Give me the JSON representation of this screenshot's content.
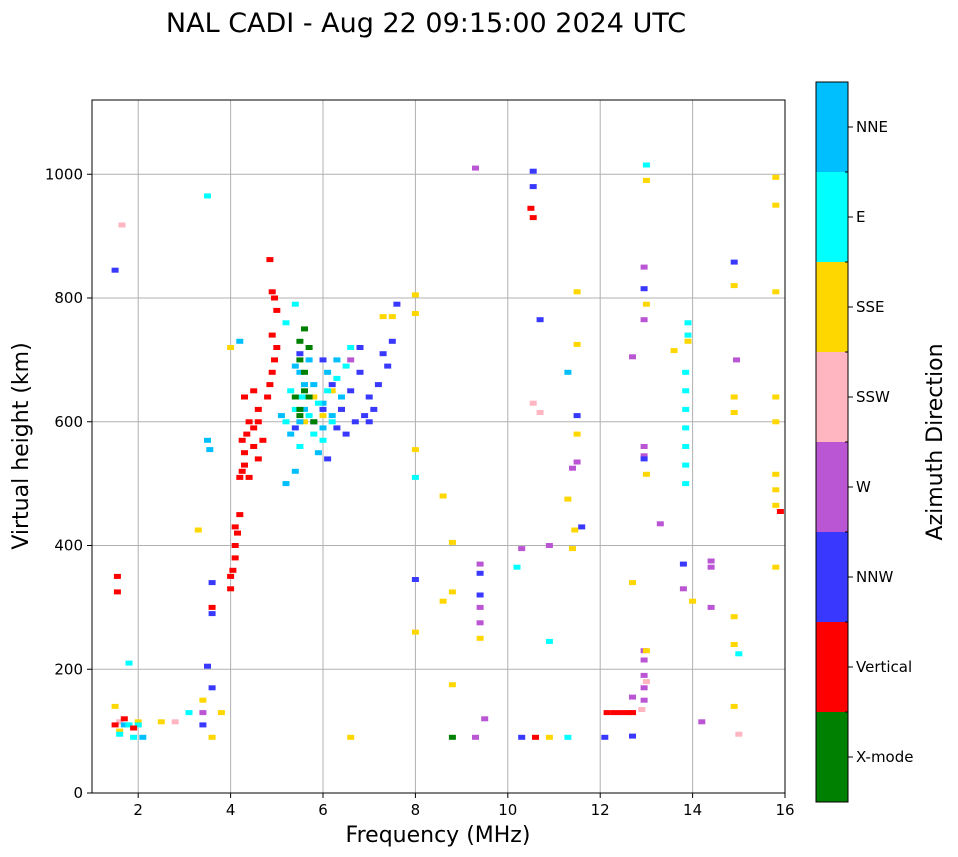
{
  "chart_data": {
    "type": "scatter",
    "title": "NAL CADI - Aug 22 09:15:00 2024 UTC",
    "xlabel": "Frequency (MHz)",
    "ylabel": "Virtual height (km)",
    "xlim": [
      1,
      16
    ],
    "ylim": [
      0,
      1120
    ],
    "xticks": [
      2,
      4,
      6,
      8,
      10,
      12,
      14,
      16
    ],
    "yticks": [
      0,
      200,
      400,
      600,
      800,
      1000
    ],
    "grid": true,
    "colorbar": {
      "label": "Azimuth Direction",
      "categories": [
        {
          "name": "NNE",
          "color": "#00bfff"
        },
        {
          "name": "E",
          "color": "#00ffff"
        },
        {
          "name": "SSE",
          "color": "#ffd700"
        },
        {
          "name": "SSW",
          "color": "#ffb6c1"
        },
        {
          "name": "W",
          "color": "#ba55d3"
        },
        {
          "name": "NNW",
          "color": "#3838ff"
        },
        {
          "name": "Vertical",
          "color": "#ff0000"
        },
        {
          "name": "X-mode",
          "color": "#008000"
        }
      ]
    },
    "series": [
      {
        "name": "Vertical",
        "points": [
          [
            1.55,
            325
          ],
          [
            1.55,
            350
          ],
          [
            1.5,
            110
          ],
          [
            1.7,
            120
          ],
          [
            1.9,
            105
          ],
          [
            3.6,
            300
          ],
          [
            4.0,
            330
          ],
          [
            4.0,
            350
          ],
          [
            4.05,
            360
          ],
          [
            4.1,
            380
          ],
          [
            4.1,
            400
          ],
          [
            4.15,
            420
          ],
          [
            4.1,
            430
          ],
          [
            4.2,
            450
          ],
          [
            4.2,
            510
          ],
          [
            4.25,
            520
          ],
          [
            4.3,
            530
          ],
          [
            4.3,
            550
          ],
          [
            4.25,
            570
          ],
          [
            4.35,
            580
          ],
          [
            4.4,
            600
          ],
          [
            4.5,
            560
          ],
          [
            4.5,
            590
          ],
          [
            4.6,
            620
          ],
          [
            4.6,
            540
          ],
          [
            4.7,
            570
          ],
          [
            4.8,
            640
          ],
          [
            4.85,
            660
          ],
          [
            4.9,
            680
          ],
          [
            4.95,
            700
          ],
          [
            5.0,
            720
          ],
          [
            4.9,
            740
          ],
          [
            5.0,
            780
          ],
          [
            4.95,
            800
          ],
          [
            4.9,
            810
          ],
          [
            4.85,
            862
          ],
          [
            4.3,
            640
          ],
          [
            4.5,
            650
          ],
          [
            4.6,
            600
          ],
          [
            4.4,
            510
          ],
          [
            10.5,
            945
          ],
          [
            10.55,
            930
          ],
          [
            10.6,
            90
          ],
          [
            12.15,
            130
          ],
          [
            12.3,
            130
          ],
          [
            12.45,
            130
          ],
          [
            12.6,
            130
          ],
          [
            12.7,
            130
          ],
          [
            15.9,
            455
          ]
        ]
      },
      {
        "name": "NNE",
        "points": [
          [
            1.7,
            110
          ],
          [
            2.1,
            90
          ],
          [
            3.5,
            570
          ],
          [
            3.55,
            555
          ],
          [
            4.2,
            730
          ],
          [
            5.2,
            500
          ],
          [
            5.4,
            520
          ],
          [
            5.5,
            600
          ],
          [
            5.6,
            620
          ],
          [
            5.8,
            660
          ],
          [
            6.0,
            630
          ],
          [
            6.2,
            610
          ],
          [
            6.4,
            640
          ],
          [
            5.9,
            550
          ],
          [
            5.3,
            580
          ],
          [
            5.7,
            700
          ],
          [
            5.1,
            610
          ],
          [
            6.1,
            680
          ],
          [
            6.3,
            700
          ],
          [
            5.5,
            680
          ],
          [
            11.3,
            680
          ],
          [
            5.4,
            690
          ],
          [
            5.6,
            660
          ],
          [
            6.0,
            590
          ]
        ]
      },
      {
        "name": "E",
        "points": [
          [
            1.6,
            95
          ],
          [
            1.8,
            110
          ],
          [
            1.8,
            210
          ],
          [
            1.9,
            90
          ],
          [
            2.0,
            110
          ],
          [
            3.1,
            130
          ],
          [
            3.5,
            965
          ],
          [
            5.3,
            650
          ],
          [
            5.5,
            640
          ],
          [
            5.7,
            610
          ],
          [
            5.9,
            630
          ],
          [
            6.1,
            650
          ],
          [
            6.3,
            670
          ],
          [
            5.5,
            560
          ],
          [
            5.8,
            580
          ],
          [
            6.0,
            570
          ],
          [
            6.2,
            600
          ],
          [
            5.2,
            600
          ],
          [
            5.4,
            620
          ],
          [
            5.6,
            640
          ],
          [
            6.5,
            690
          ],
          [
            6.6,
            720
          ],
          [
            5.2,
            760
          ],
          [
            5.4,
            790
          ],
          [
            8.0,
            510
          ],
          [
            10.2,
            365
          ],
          [
            10.9,
            245
          ],
          [
            11.3,
            90
          ],
          [
            13.0,
            1015
          ],
          [
            13.85,
            530
          ],
          [
            13.85,
            560
          ],
          [
            13.85,
            590
          ],
          [
            13.85,
            620
          ],
          [
            13.85,
            650
          ],
          [
            13.85,
            680
          ],
          [
            13.85,
            500
          ],
          [
            13.9,
            740
          ],
          [
            13.9,
            760
          ],
          [
            15.0,
            225
          ]
        ]
      },
      {
        "name": "SSE",
        "points": [
          [
            1.5,
            140
          ],
          [
            1.6,
            100
          ],
          [
            2.0,
            115
          ],
          [
            2.5,
            115
          ],
          [
            3.3,
            425
          ],
          [
            3.4,
            150
          ],
          [
            3.6,
            90
          ],
          [
            3.8,
            130
          ],
          [
            4.0,
            720
          ],
          [
            5.6,
            600
          ],
          [
            5.8,
            640
          ],
          [
            6.0,
            610
          ],
          [
            6.2,
            650
          ],
          [
            6.4,
            620
          ],
          [
            7.3,
            770
          ],
          [
            7.5,
            770
          ],
          [
            8.0,
            805
          ],
          [
            8.0,
            775
          ],
          [
            8.0,
            555
          ],
          [
            8.0,
            260
          ],
          [
            8.6,
            480
          ],
          [
            8.6,
            310
          ],
          [
            8.8,
            405
          ],
          [
            8.8,
            175
          ],
          [
            8.8,
            325
          ],
          [
            9.4,
            250
          ],
          [
            10.9,
            90
          ],
          [
            11.3,
            475
          ],
          [
            11.4,
            395
          ],
          [
            11.45,
            425
          ],
          [
            11.5,
            725
          ],
          [
            11.5,
            810
          ],
          [
            11.5,
            580
          ],
          [
            12.7,
            340
          ],
          [
            13.0,
            990
          ],
          [
            13.0,
            790
          ],
          [
            13.0,
            515
          ],
          [
            13.0,
            230
          ],
          [
            13.6,
            715
          ],
          [
            13.9,
            730
          ],
          [
            13.9,
            740
          ],
          [
            14.0,
            310
          ],
          [
            14.9,
            820
          ],
          [
            14.9,
            640
          ],
          [
            14.9,
            615
          ],
          [
            14.9,
            285
          ],
          [
            14.9,
            240
          ],
          [
            14.9,
            140
          ],
          [
            15.8,
            995
          ],
          [
            15.8,
            950
          ],
          [
            15.8,
            810
          ],
          [
            15.8,
            640
          ],
          [
            15.8,
            600
          ],
          [
            15.8,
            515
          ],
          [
            15.8,
            490
          ],
          [
            15.8,
            465
          ],
          [
            15.8,
            365
          ],
          [
            6.6,
            90
          ]
        ]
      },
      {
        "name": "SSW",
        "points": [
          [
            1.65,
            918
          ],
          [
            1.6,
            115
          ],
          [
            2.8,
            115
          ],
          [
            10.55,
            630
          ],
          [
            10.7,
            615
          ],
          [
            12.9,
            135
          ],
          [
            13.0,
            180
          ],
          [
            15.0,
            95
          ]
        ]
      },
      {
        "name": "W",
        "points": [
          [
            3.4,
            130
          ],
          [
            6.6,
            700
          ],
          [
            9.3,
            1010
          ],
          [
            9.5,
            120
          ],
          [
            9.4,
            300
          ],
          [
            9.4,
            275
          ],
          [
            9.4,
            370
          ],
          [
            10.3,
            395
          ],
          [
            10.9,
            400
          ],
          [
            11.4,
            525
          ],
          [
            11.5,
            535
          ],
          [
            12.7,
            705
          ],
          [
            12.95,
            850
          ],
          [
            12.95,
            765
          ],
          [
            12.95,
            560
          ],
          [
            12.95,
            545
          ],
          [
            12.95,
            230
          ],
          [
            12.95,
            215
          ],
          [
            12.95,
            190
          ],
          [
            12.95,
            170
          ],
          [
            12.95,
            150
          ],
          [
            12.7,
            155
          ],
          [
            13.3,
            435
          ],
          [
            13.8,
            330
          ],
          [
            14.4,
            300
          ],
          [
            14.4,
            375
          ],
          [
            14.4,
            365
          ],
          [
            14.2,
            115
          ],
          [
            14.95,
            700
          ],
          [
            9.3,
            90
          ]
        ]
      },
      {
        "name": "NNW",
        "points": [
          [
            1.5,
            845
          ],
          [
            3.5,
            205
          ],
          [
            3.6,
            340
          ],
          [
            3.6,
            290
          ],
          [
            3.6,
            170
          ],
          [
            3.4,
            110
          ],
          [
            5.4,
            590
          ],
          [
            5.8,
            600
          ],
          [
            6.0,
            620
          ],
          [
            6.2,
            660
          ],
          [
            6.4,
            620
          ],
          [
            6.6,
            650
          ],
          [
            6.8,
            680
          ],
          [
            7.0,
            640
          ],
          [
            7.2,
            660
          ],
          [
            7.4,
            690
          ],
          [
            6.5,
            580
          ],
          [
            6.7,
            600
          ],
          [
            6.9,
            610
          ],
          [
            7.1,
            620
          ],
          [
            7.3,
            710
          ],
          [
            7.5,
            730
          ],
          [
            6.3,
            590
          ],
          [
            6.1,
            540
          ],
          [
            6.8,
            720
          ],
          [
            7.0,
            600
          ],
          [
            7.6,
            790
          ],
          [
            8.0,
            345
          ],
          [
            9.4,
            320
          ],
          [
            9.4,
            355
          ],
          [
            10.3,
            90
          ],
          [
            10.55,
            1005
          ],
          [
            10.55,
            980
          ],
          [
            10.7,
            765
          ],
          [
            11.5,
            610
          ],
          [
            11.6,
            430
          ],
          [
            12.1,
            90
          ],
          [
            12.7,
            92
          ],
          [
            12.95,
            815
          ],
          [
            12.95,
            540
          ],
          [
            13.8,
            370
          ],
          [
            14.9,
            858
          ],
          [
            5.5,
            710
          ],
          [
            6.0,
            700
          ]
        ]
      },
      {
        "name": "X-mode",
        "points": [
          [
            5.5,
            620
          ],
          [
            5.6,
            650
          ],
          [
            5.7,
            640
          ],
          [
            5.6,
            680
          ],
          [
            5.5,
            700
          ],
          [
            5.7,
            720
          ],
          [
            5.6,
            750
          ],
          [
            5.5,
            610
          ],
          [
            5.8,
            600
          ],
          [
            5.4,
            640
          ],
          [
            5.5,
            730
          ],
          [
            8.8,
            90
          ]
        ]
      }
    ]
  }
}
